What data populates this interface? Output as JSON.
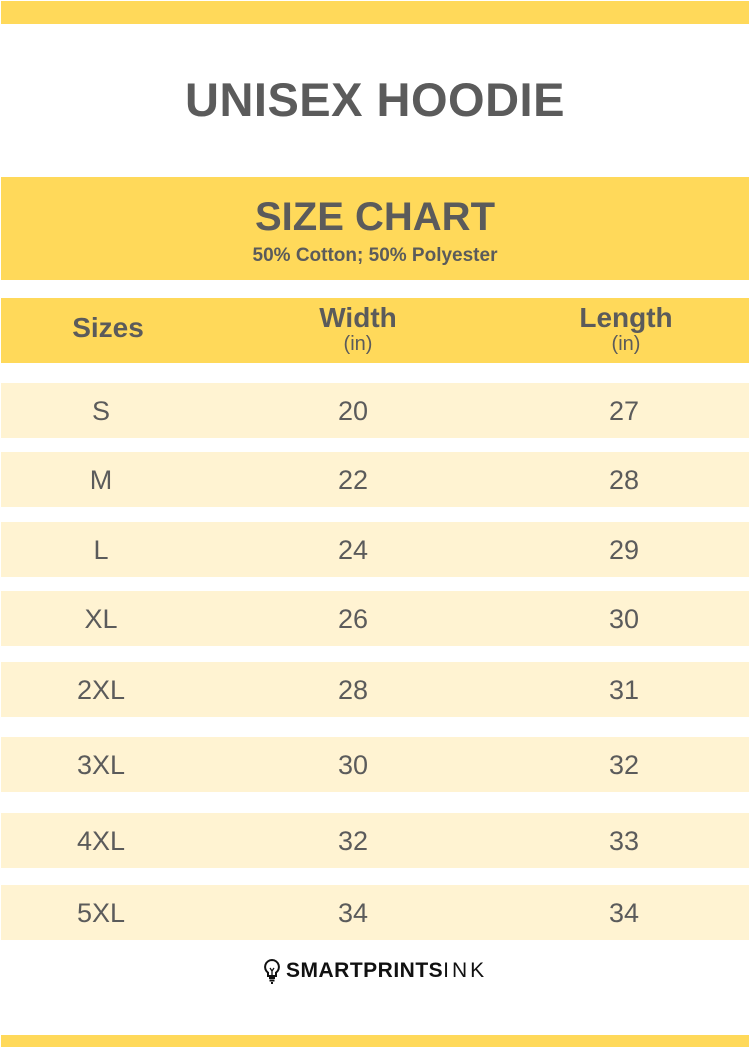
{
  "title": "UNISEX HOODIE",
  "chart_heading": "SIZE CHART",
  "material": "50% Cotton; 50% Polyester",
  "columns": {
    "sizes": "Sizes",
    "width": "Width",
    "width_unit": "(in)",
    "length": "Length",
    "length_unit": "(in)"
  },
  "rows": [
    {
      "size": "S",
      "width": "20",
      "length": "27"
    },
    {
      "size": "M",
      "width": "22",
      "length": "28"
    },
    {
      "size": "L",
      "width": "24",
      "length": "29"
    },
    {
      "size": "XL",
      "width": "26",
      "length": "30"
    },
    {
      "size": "2XL",
      "width": "28",
      "length": "31"
    },
    {
      "size": "3XL",
      "width": "30",
      "length": "32"
    },
    {
      "size": "4XL",
      "width": "32",
      "length": "33"
    },
    {
      "size": "5XL",
      "width": "34",
      "length": "34"
    }
  ],
  "brand": {
    "bold": "SMARTPRINTS",
    "light": "INK",
    "icon": "lightbulb-icon"
  },
  "colors": {
    "accent": "#FFD95A",
    "row": "#FFF3D2",
    "text": "#5b5b5b"
  }
}
